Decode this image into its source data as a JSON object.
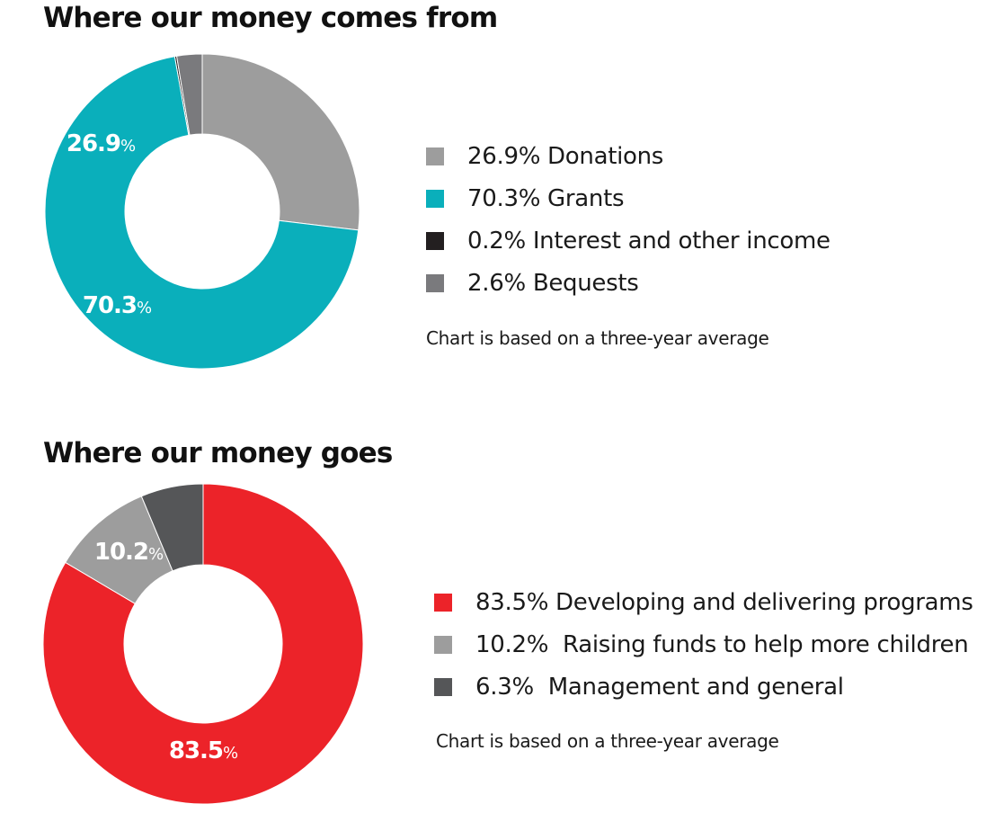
{
  "chart_data": [
    {
      "type": "pie",
      "donut": true,
      "title": "Where our money comes from",
      "slices": [
        {
          "label": "Donations",
          "value": 26.9,
          "legend": "26.9% Donations",
          "color": "#9d9d9d"
        },
        {
          "label": "Grants",
          "value": 70.3,
          "legend": "70.3% Grants",
          "color": "#0aafbb"
        },
        {
          "label": "Interest and other income",
          "value": 0.2,
          "legend": "0.2% Interest and other income",
          "color": "#231f20"
        },
        {
          "label": "Bequests",
          "value": 2.6,
          "legend": "2.6% Bequests",
          "color": "#7a7a7d"
        }
      ],
      "slice_labels": [
        {
          "value": "26.9",
          "unit": "%"
        },
        {
          "value": "70.3",
          "unit": "%"
        }
      ],
      "note": "Chart is based on a three-year average",
      "legend_placement": "right"
    },
    {
      "type": "pie",
      "donut": true,
      "title": "Where our money goes",
      "slices": [
        {
          "label": "Developing and delivering programs",
          "value": 83.5,
          "legend": "83.5% Developing and delivering programs",
          "color": "#ec2329"
        },
        {
          "label": "Raising funds to help more children",
          "value": 10.2,
          "legend": "10.2%  Raising funds to help more children",
          "color": "#9d9d9d"
        },
        {
          "label": "Management and general",
          "value": 6.3,
          "legend": "6.3%  Management and general",
          "color": "#555658"
        }
      ],
      "slice_labels": [
        {
          "value": "83.5",
          "unit": "%"
        },
        {
          "value": "10.2",
          "unit": "%"
        }
      ],
      "note": "Chart is based on a three-year average",
      "legend_placement": "right"
    }
  ]
}
